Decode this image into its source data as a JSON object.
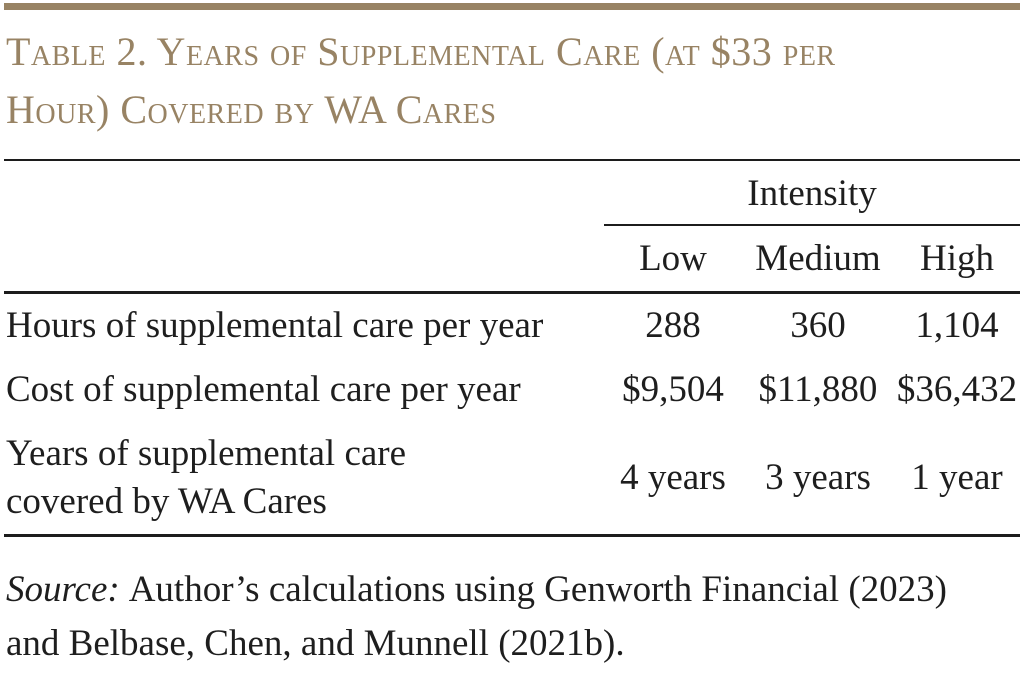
{
  "colors": {
    "accent_tan": "#988364",
    "rule_black": "#1c1c1c",
    "text_black": "#1e1e1e",
    "background": "#ffffff"
  },
  "title": {
    "line1": "Table 2. Years of Supplemental Care (at $33 per",
    "line2": "Hour) Covered by WA Cares"
  },
  "table": {
    "intensity_header": "Intensity",
    "columns": [
      "Low",
      "Medium",
      "High"
    ],
    "rows": [
      {
        "label": "Hours of supplemental care per year",
        "values": [
          "288",
          "360",
          "1,104"
        ]
      },
      {
        "label": "Cost of supplemental care per year",
        "values": [
          "$9,504",
          "$11,880",
          "$36,432"
        ]
      },
      {
        "label_lines": [
          "Years of supplemental care",
          "covered by WA Cares"
        ],
        "values": [
          "4 years",
          "3 years",
          "1 year"
        ]
      }
    ]
  },
  "source": {
    "label": "Source:",
    "text": "Author’s calculations using Genworth Financial (2023) and Belbase, Chen, and Munnell (2021b)."
  }
}
